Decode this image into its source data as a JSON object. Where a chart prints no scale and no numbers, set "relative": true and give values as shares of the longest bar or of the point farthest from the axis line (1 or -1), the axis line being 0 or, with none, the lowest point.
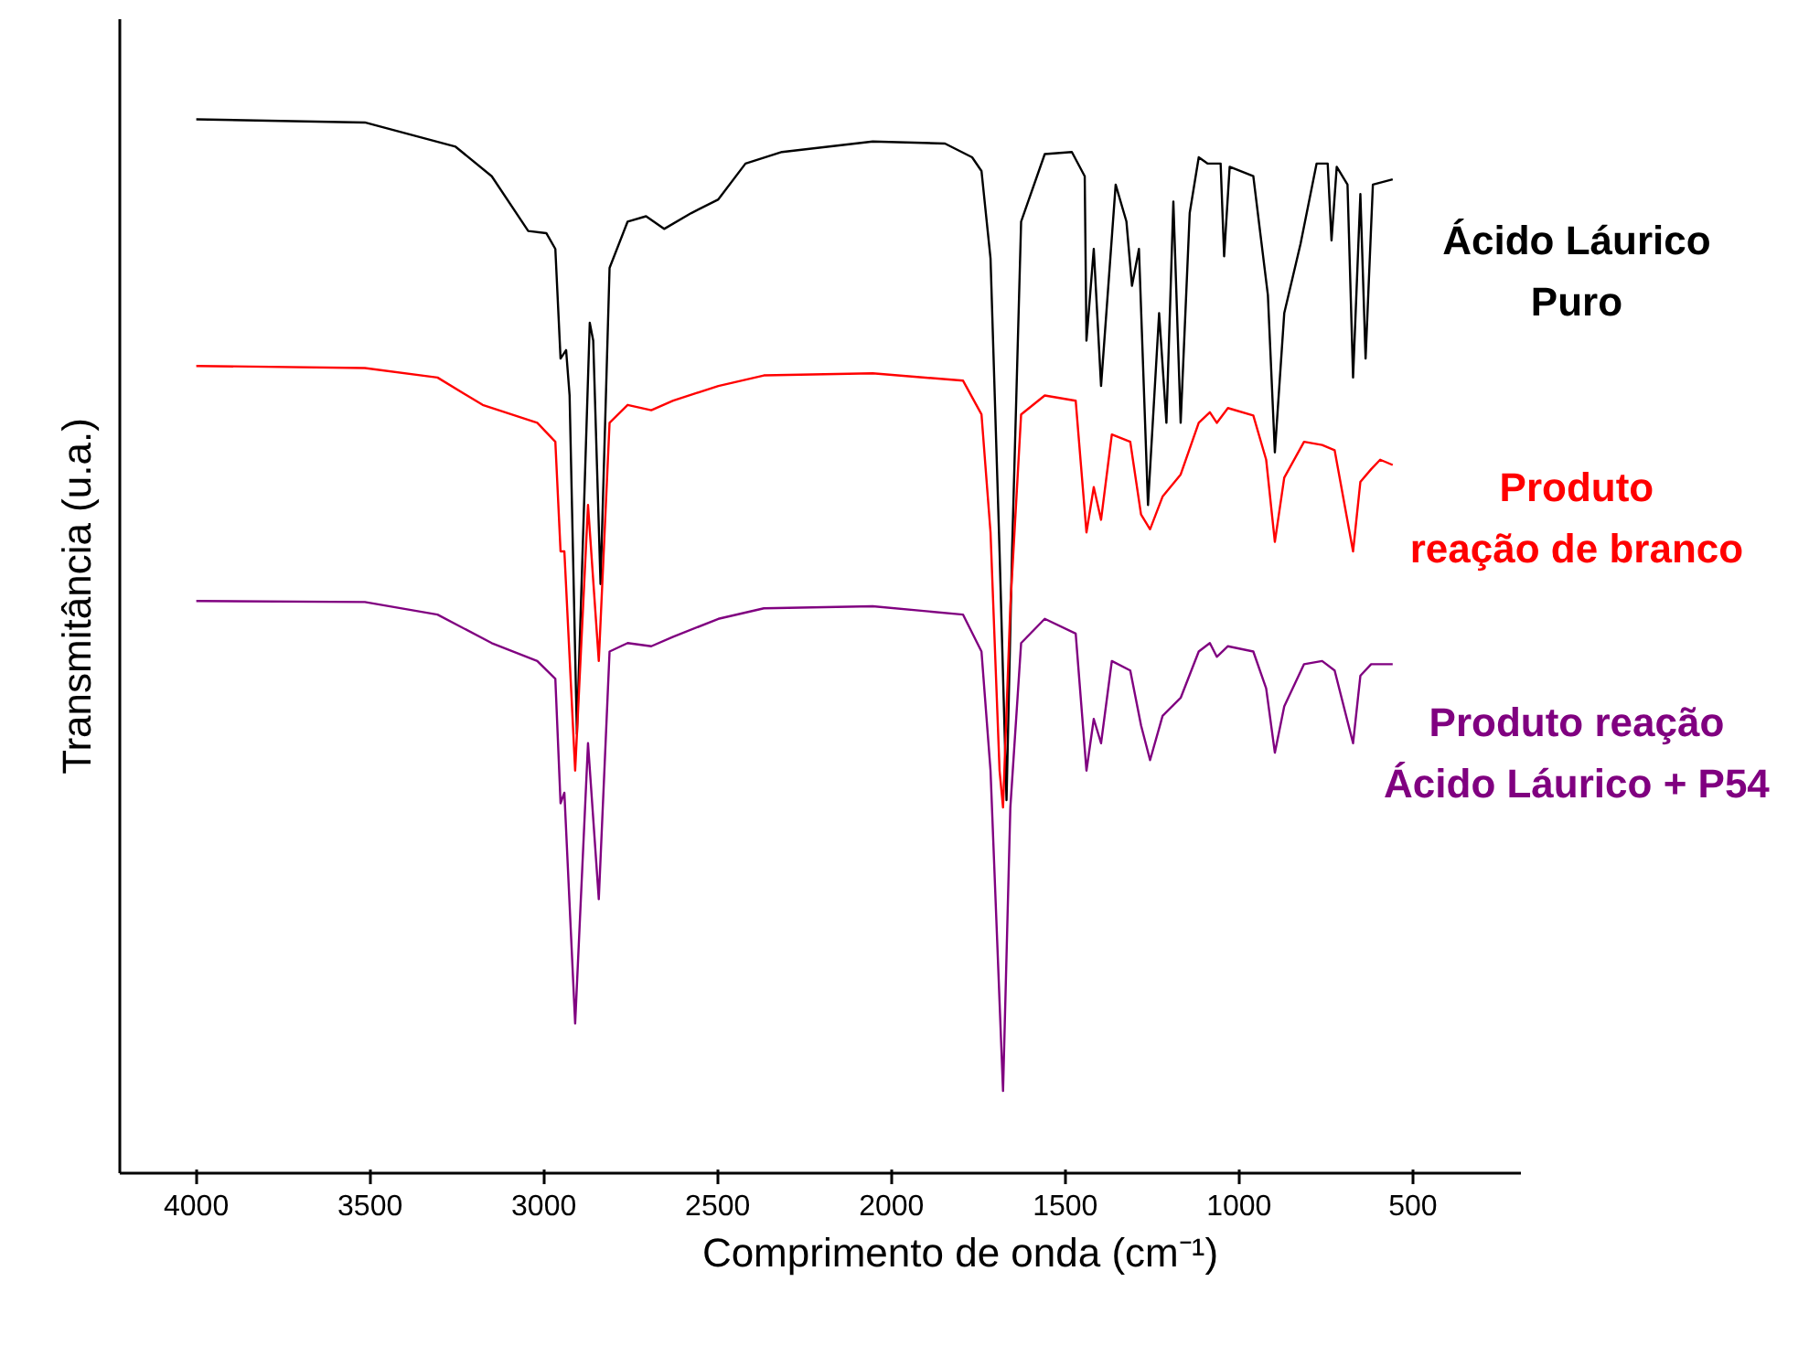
{
  "chart_data": {
    "type": "line",
    "xlabel": "Comprimento de onda (cm⁻¹)",
    "ylabel": "Transmitância (u.a.)",
    "relative": true,
    "xlim": [
      4220,
      190
    ],
    "xticks": [
      4000,
      3500,
      3000,
      2500,
      2000,
      1500,
      1000,
      500
    ],
    "series": [
      {
        "name": "Ácido Láurico\nPuro",
        "color": "#000000",
        "x": [
          4000,
          3515,
          3254,
          3150,
          3045,
          2993,
          2967,
          2952,
          2936,
          2926,
          2905,
          2868,
          2858,
          2837,
          2811,
          2759,
          2706,
          2654,
          2576,
          2498,
          2420,
          2315,
          2054,
          1846,
          1768,
          1741,
          1715,
          1689,
          1669,
          1653,
          1627,
          1559,
          1481,
          1444,
          1439,
          1418,
          1397,
          1355,
          1324,
          1308,
          1288,
          1262,
          1230,
          1209,
          1189,
          1168,
          1142,
          1116,
          1090,
          1053,
          1043,
          1027,
          959,
          917,
          897,
          870,
          823,
          777,
          745,
          734,
          719,
          688,
          672,
          651,
          636,
          615,
          558
        ],
        "values": [
          1.0,
          0.997,
          0.974,
          0.946,
          0.894,
          0.892,
          0.877,
          0.773,
          0.781,
          0.738,
          0.417,
          0.807,
          0.79,
          0.559,
          0.859,
          0.903,
          0.908,
          0.896,
          0.911,
          0.924,
          0.958,
          0.969,
          0.979,
          0.977,
          0.964,
          0.951,
          0.868,
          0.59,
          0.354,
          0.59,
          0.903,
          0.967,
          0.969,
          0.946,
          0.79,
          0.877,
          0.747,
          0.938,
          0.903,
          0.842,
          0.877,
          0.634,
          0.816,
          0.712,
          0.922,
          0.712,
          0.911,
          0.964,
          0.958,
          0.958,
          0.87,
          0.955,
          0.946,
          0.833,
          0.684,
          0.816,
          0.882,
          0.958,
          0.958,
          0.885,
          0.955,
          0.938,
          0.755,
          0.929,
          0.773,
          0.938,
          0.943
        ]
      },
      {
        "name": "Produto\nreação de branco",
        "color": "#ff0000",
        "x": [
          4000,
          3515,
          3306,
          3176,
          3019,
          2967,
          2952,
          2941,
          2910,
          2873,
          2842,
          2811,
          2759,
          2691,
          2628,
          2498,
          2367,
          2054,
          1794,
          1741,
          1715,
          1689,
          1679,
          1658,
          1627,
          1559,
          1470,
          1439,
          1418,
          1397,
          1366,
          1313,
          1282,
          1256,
          1220,
          1168,
          1116,
          1084,
          1064,
          1032,
          959,
          922,
          897,
          870,
          813,
          761,
          725,
          672,
          651,
          620,
          594,
          558
        ],
        "values": [
          0.766,
          0.764,
          0.755,
          0.729,
          0.712,
          0.694,
          0.59,
          0.59,
          0.382,
          0.634,
          0.486,
          0.712,
          0.729,
          0.724,
          0.733,
          0.747,
          0.757,
          0.759,
          0.752,
          0.72,
          0.608,
          0.382,
          0.347,
          0.538,
          0.72,
          0.738,
          0.733,
          0.608,
          0.651,
          0.62,
          0.701,
          0.694,
          0.625,
          0.611,
          0.642,
          0.663,
          0.712,
          0.722,
          0.712,
          0.726,
          0.719,
          0.677,
          0.599,
          0.66,
          0.694,
          0.691,
          0.686,
          0.59,
          0.656,
          0.668,
          0.677,
          0.672
        ]
      },
      {
        "name": "Produto reação\nÁcido Láurico + P54",
        "color": "#800080",
        "x": [
          4000,
          3515,
          3306,
          3150,
          3019,
          2967,
          2952,
          2941,
          2910,
          2873,
          2842,
          2811,
          2759,
          2691,
          2628,
          2498,
          2367,
          2054,
          1794,
          1741,
          1715,
          1679,
          1658,
          1627,
          1559,
          1470,
          1439,
          1418,
          1397,
          1366,
          1313,
          1282,
          1256,
          1220,
          1168,
          1116,
          1084,
          1064,
          1032,
          959,
          922,
          897,
          870,
          813,
          761,
          725,
          672,
          651,
          620,
          558
        ],
        "values": [
          0.543,
          0.542,
          0.53,
          0.503,
          0.486,
          0.469,
          0.351,
          0.361,
          0.142,
          0.408,
          0.26,
          0.495,
          0.503,
          0.5,
          0.509,
          0.526,
          0.536,
          0.538,
          0.53,
          0.495,
          0.382,
          0.078,
          0.347,
          0.503,
          0.526,
          0.512,
          0.382,
          0.431,
          0.408,
          0.486,
          0.477,
          0.425,
          0.392,
          0.434,
          0.451,
          0.495,
          0.503,
          0.49,
          0.5,
          0.495,
          0.46,
          0.399,
          0.443,
          0.483,
          0.486,
          0.477,
          0.408,
          0.472,
          0.483,
          0.483
        ]
      }
    ]
  }
}
